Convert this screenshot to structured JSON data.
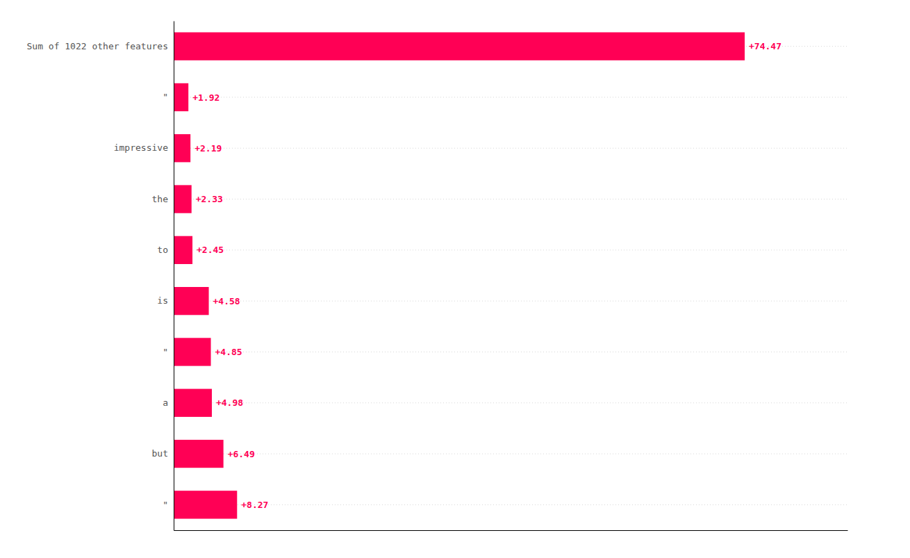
{
  "chart_data": {
    "type": "bar",
    "orientation": "horizontal",
    "categories": [
      "\"",
      "but",
      "a",
      "\"",
      "is",
      "to",
      "the",
      "impressive",
      "\"",
      "Sum of 1022 other features"
    ],
    "values": [
      8.27,
      6.49,
      4.98,
      4.85,
      4.58,
      2.45,
      2.33,
      2.19,
      1.92,
      74.47
    ],
    "value_labels": [
      "+8.27",
      "+6.49",
      "+4.98",
      "+4.85",
      "+4.58",
      "+2.45",
      "+2.33",
      "+2.19",
      "+1.92",
      "+74.47"
    ],
    "data_labels": true,
    "color": "#FF0055",
    "xlim": [
      0,
      87.8746
    ],
    "grid": true,
    "tick_labels": "y"
  }
}
